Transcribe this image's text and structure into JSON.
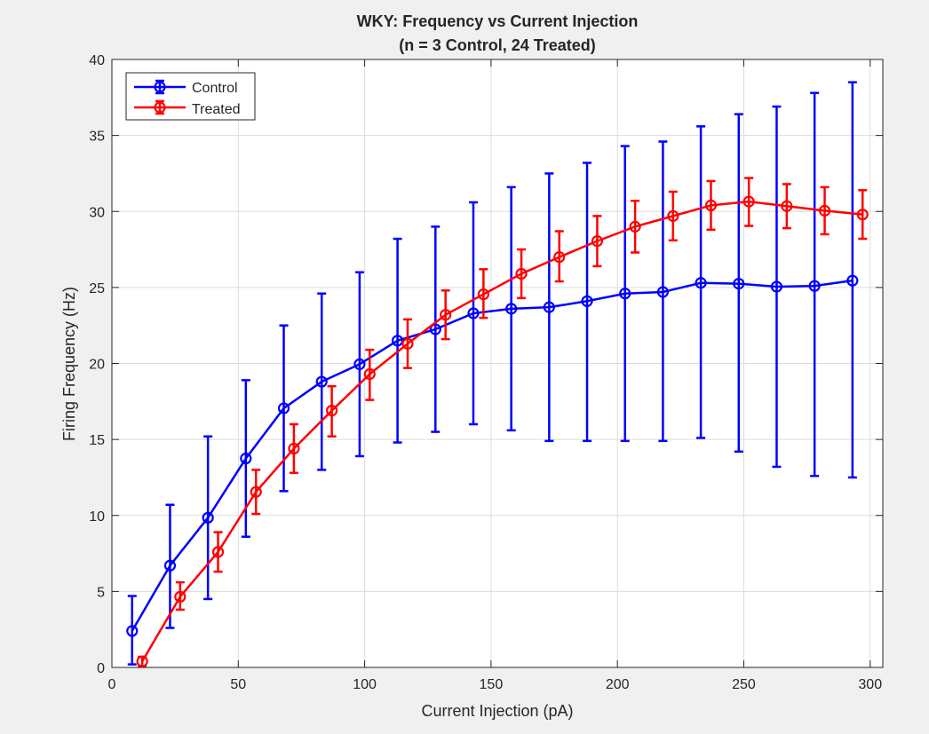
{
  "chart_data": {
    "type": "line",
    "title": "WKY: Frequency vs Current Injection",
    "subtitle": "(n = 3 Control, 24 Treated)",
    "xlabel": "Current Injection (pA)",
    "ylabel": "Firing Frequency (Hz)",
    "xlim": [
      0,
      305
    ],
    "ylim": [
      0,
      40
    ],
    "xticks": [
      0,
      50,
      100,
      150,
      200,
      250,
      300
    ],
    "yticks": [
      0,
      5,
      10,
      15,
      20,
      25,
      30,
      35,
      40
    ],
    "grid": true,
    "legend_position": "top-left",
    "series": [
      {
        "name": "Control",
        "color": "#0000ff",
        "marker": "circle",
        "x": [
          8,
          23,
          38,
          53,
          68,
          83,
          98,
          113,
          128,
          143,
          158,
          173,
          188,
          203,
          218,
          233,
          248,
          263,
          278,
          293
        ],
        "y": [
          2.4,
          6.7,
          9.85,
          13.75,
          17.05,
          18.8,
          19.95,
          21.5,
          22.25,
          23.3,
          23.6,
          23.7,
          24.1,
          24.6,
          24.7,
          25.3,
          25.25,
          25.05,
          25.1,
          25.45
        ],
        "err_low": [
          0.2,
          2.6,
          4.5,
          8.6,
          11.6,
          13.0,
          13.9,
          14.8,
          15.5,
          16.0,
          15.6,
          14.9,
          14.9,
          14.9,
          14.9,
          15.1,
          14.2,
          13.2,
          12.6,
          12.5
        ],
        "err_high": [
          4.7,
          10.7,
          15.2,
          18.9,
          22.5,
          24.6,
          26.0,
          28.2,
          29.0,
          30.6,
          31.6,
          32.5,
          33.2,
          34.3,
          34.6,
          35.6,
          36.4,
          36.9,
          37.8,
          38.5
        ]
      },
      {
        "name": "Treated",
        "color": "#ff0000",
        "marker": "circle",
        "x": [
          12,
          27,
          42,
          57,
          72,
          87,
          102,
          117,
          132,
          147,
          162,
          177,
          192,
          207,
          222,
          237,
          252,
          267,
          282,
          297
        ],
        "y": [
          0.4,
          4.65,
          7.6,
          11.55,
          14.4,
          16.9,
          19.3,
          21.3,
          23.2,
          24.55,
          25.9,
          27.0,
          28.05,
          29.0,
          29.7,
          30.4,
          30.65,
          30.35,
          30.05,
          29.8
        ],
        "err_low": [
          0.1,
          3.8,
          6.3,
          10.1,
          12.8,
          15.2,
          17.6,
          19.7,
          21.6,
          23.0,
          24.3,
          25.4,
          26.4,
          27.3,
          28.1,
          28.8,
          29.05,
          28.9,
          28.5,
          28.2
        ],
        "err_high": [
          0.7,
          5.6,
          8.9,
          13.0,
          16.0,
          18.5,
          20.9,
          22.9,
          24.8,
          26.2,
          27.5,
          28.7,
          29.7,
          30.7,
          31.3,
          32.0,
          32.2,
          31.8,
          31.6,
          31.4
        ]
      }
    ]
  }
}
